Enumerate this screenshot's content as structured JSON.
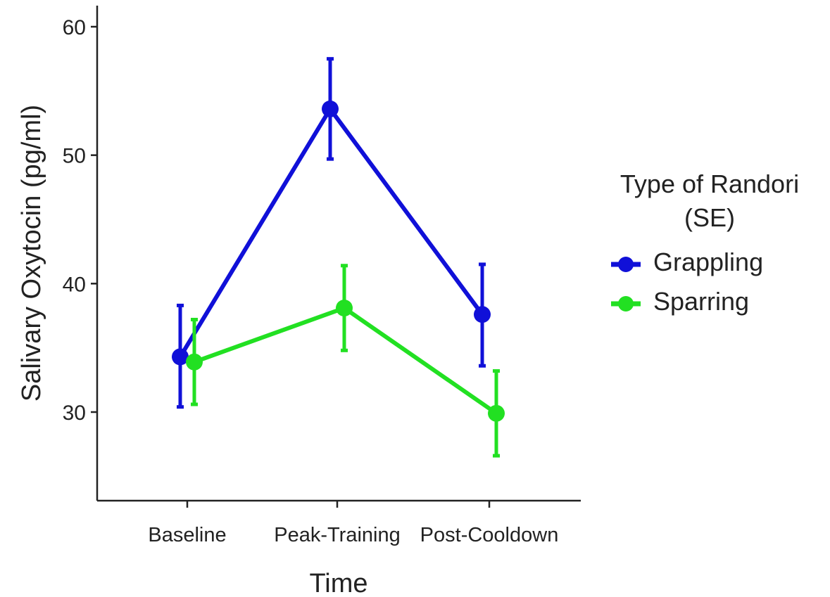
{
  "chart_data": {
    "type": "line",
    "xlabel": "Time",
    "ylabel": "Salivary Oxytocin (pg/ml)",
    "categories": [
      "Baseline",
      "Peak-Training",
      "Post-Cooldown"
    ],
    "yticks": [
      30,
      40,
      50,
      60
    ],
    "ylim": [
      23,
      62
    ],
    "grid": false,
    "legend_position": "right",
    "legend_title": [
      "Type of Randori",
      "(SE)"
    ],
    "error_bars": "SE",
    "series": [
      {
        "name": "Grappling",
        "color": "#1010d8",
        "values": [
          34.3,
          53.6,
          37.6
        ],
        "lower": [
          30.4,
          49.7,
          33.6
        ],
        "upper": [
          38.3,
          57.5,
          41.5
        ]
      },
      {
        "name": "Sparring",
        "color": "#22e022",
        "values": [
          33.9,
          38.1,
          29.9
        ],
        "lower": [
          30.6,
          34.8,
          26.6
        ],
        "upper": [
          37.2,
          41.4,
          33.2
        ]
      }
    ]
  }
}
